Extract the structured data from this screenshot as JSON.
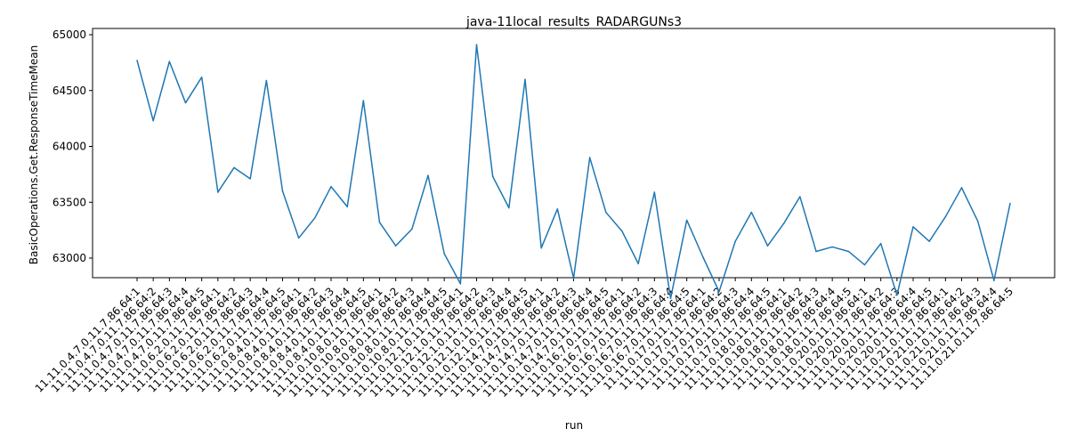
{
  "chart_data": {
    "type": "line",
    "title": "java-11local_results_RADARGUNs3",
    "xlabel": "run",
    "ylabel": "BasicOperations.Get.ResponseTimeMean",
    "ylim": [
      62500,
      65000
    ],
    "yticks": [
      63000,
      63500,
      64000,
      64500,
      65000
    ],
    "grid": false,
    "color": "#1f77b4",
    "categories": [
      "11.11.0.4.7.0.11.7.86.64:1",
      "11.11.0.4.7.0.11.7.86.64:2",
      "11.11.0.4.7.0.11.7.86.64:3",
      "11.11.0.4.7.0.11.7.86.64:4",
      "11.11.0.4.7.0.11.7.86.64:5",
      "11.11.0.6.2.0.11.7.86.64:1",
      "11.11.0.6.2.0.11.7.86.64:2",
      "11.11.0.6.2.0.11.7.86.64:3",
      "11.11.0.6.2.0.11.7.86.64:4",
      "11.11.0.6.2.0.11.7.86.64:5",
      "11.11.0.8.4.0.11.7.86.64:1",
      "11.11.0.8.4.0.11.7.86.64:2",
      "11.11.0.8.4.0.11.7.86.64:3",
      "11.11.0.8.4.0.11.7.86.64:4",
      "11.11.0.8.4.0.11.7.86.64:5",
      "11.11.0.10.8.0.11.7.86.64:1",
      "11.11.0.10.8.0.11.7.86.64:2",
      "11.11.0.10.8.0.11.7.86.64:3",
      "11.11.0.10.8.0.11.7.86.64:4",
      "11.11.0.10.8.0.11.7.86.64:5",
      "11.11.0.12.1.0.11.7.86.64:1",
      "11.11.0.12.1.0.11.7.86.64:2",
      "11.11.0.12.1.0.11.7.86.64:3",
      "11.11.0.12.1.0.11.7.86.64:4",
      "11.11.0.12.1.0.11.7.86.64:5",
      "11.11.0.14.7.0.11.7.86.64:1",
      "11.11.0.14.7.0.11.7.86.64:2",
      "11.11.0.14.7.0.11.7.86.64:3",
      "11.11.0.14.7.0.11.7.86.64:4",
      "11.11.0.14.7.0.11.7.86.64:5",
      "11.11.0.16.7.0.11.7.86.64:1",
      "11.11.0.16.7.0.11.7.86.64:2",
      "11.11.0.16.7.0.11.7.86.64:3",
      "11.11.0.16.7.0.11.7.86.64:4",
      "11.11.0.16.7.0.11.7.86.64:5",
      "11.11.0.17.0.11.7.86.64:1",
      "11.11.0.17.0.11.7.86.64:2",
      "11.11.0.17.0.11.7.86.64:3",
      "11.11.0.17.0.11.7.86.64:4",
      "11.11.0.17.0.11.7.86.64:5",
      "11.11.0.18.0.11.7.86.64:1",
      "11.11.0.18.0.11.7.86.64:2",
      "11.11.0.18.0.11.7.86.64:3",
      "11.11.0.18.0.11.7.86.64:4",
      "11.11.0.18.0.11.7.86.64:5",
      "11.11.0.20.0.11.7.86.64:1",
      "11.11.0.20.0.11.7.86.64:2",
      "11.11.0.20.0.11.7.86.64:3",
      "11.11.0.20.0.11.7.86.64:4",
      "11.11.0.20.0.11.7.86.64:5",
      "11.11.0.21.0.11.7.86.64:1",
      "11.11.0.21.0.11.7.86.64:2",
      "11.11.0.21.0.11.7.86.64:3",
      "11.11.0.21.0.11.7.86.64:4",
      "11.11.0.21.0.11.7.86.64:5"
    ],
    "values": [
      64770,
      64230,
      64760,
      64390,
      64620,
      63590,
      63810,
      63710,
      64590,
      63600,
      63180,
      63360,
      63640,
      63460,
      64410,
      63320,
      63110,
      63260,
      63740,
      63040,
      62770,
      64910,
      63730,
      63450,
      64600,
      63090,
      63440,
      62820,
      63900,
      63410,
      63240,
      62950,
      63590,
      62640,
      63340,
      63010,
      62700,
      63150,
      63410,
      63110,
      63310,
      63550,
      63060,
      63100,
      63060,
      62940,
      63130,
      62670,
      63280,
      63150,
      63370,
      63630,
      63330,
      62800,
      63490
    ]
  }
}
